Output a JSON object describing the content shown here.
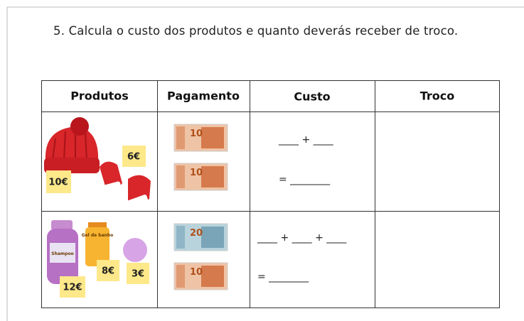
{
  "question": "5. Calcula o custo dos produtos e quanto deverás receber de troco.",
  "table": {
    "headers": [
      "Produtos",
      "Pagamento",
      "Custo",
      "Troco"
    ],
    "rows": [
      {
        "products": {
          "price_tags": [
            "6€",
            "10€"
          ]
        },
        "payment": [
          "10",
          "10"
        ],
        "cost": [
          "____ + ____",
          "= ________"
        ]
      },
      {
        "products": {
          "labels": [
            "Gel de banho",
            "Shampoo"
          ],
          "price_tags": [
            "8€",
            "3€",
            "12€"
          ]
        },
        "payment": [
          "20",
          "10"
        ],
        "cost": [
          "____ + ____ + ____",
          "= ________"
        ]
      }
    ]
  }
}
